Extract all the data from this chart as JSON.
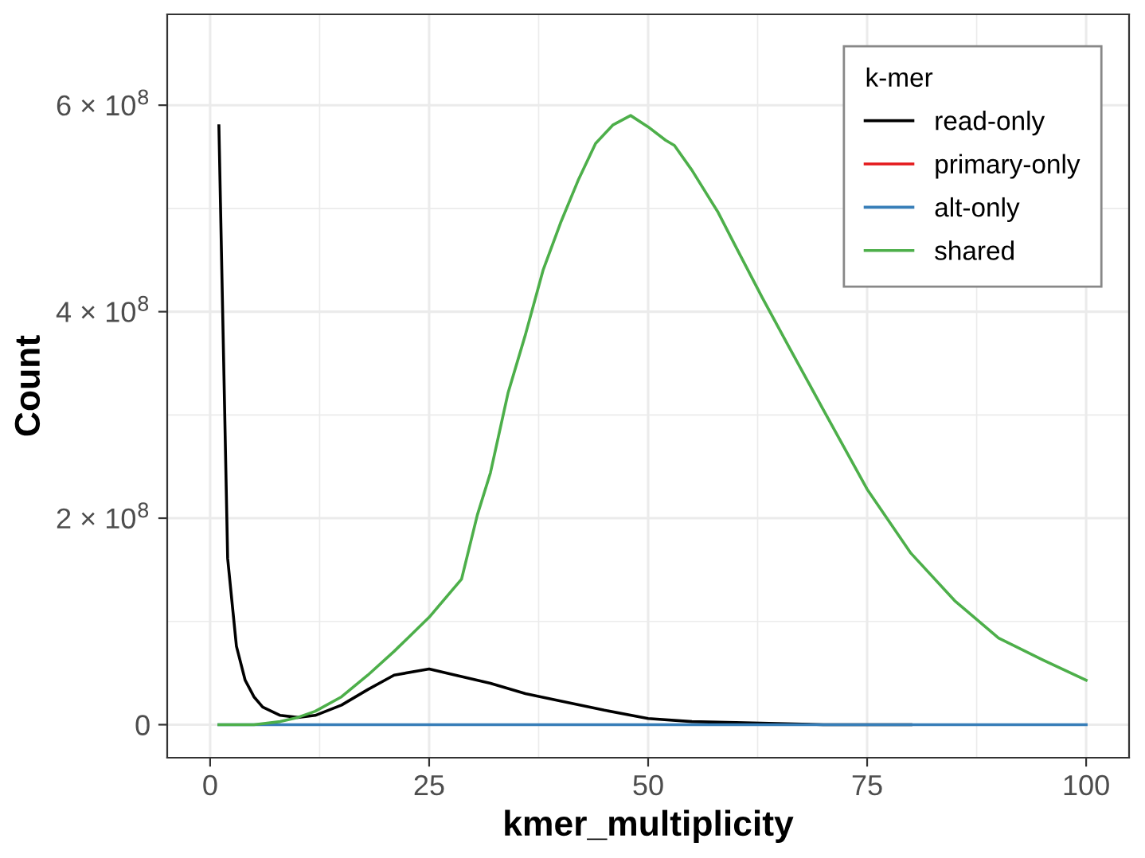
{
  "chart_data": {
    "type": "line",
    "xlabel": "kmer_multiplicity",
    "ylabel": "Count",
    "legend_title": "k-mer",
    "legend": "top right",
    "grid": true,
    "xlim": [
      -4.9,
      104.9
    ],
    "xticks": [
      0,
      25,
      50,
      75,
      100
    ],
    "ylim": [
      -32000000,
      688000000
    ],
    "yticks": [
      {
        "value": 0,
        "label": "0"
      },
      {
        "value": 200000000,
        "label": "2 × 10$^{8}$"
      },
      {
        "value": 400000000,
        "label": "4 × 10$^{8}$"
      },
      {
        "value": 600000000,
        "label": "6 × 10$^{8}$"
      }
    ],
    "series": [
      {
        "name": "read-only",
        "color": "#000000",
        "x": [
          1,
          2,
          3,
          4,
          5,
          6,
          8,
          10,
          12,
          15,
          18,
          21,
          25,
          28,
          32,
          36,
          40,
          45,
          50,
          55,
          60,
          70,
          80
        ],
        "values": [
          580000000,
          161000000,
          76000000,
          43000000,
          27000000,
          17000000,
          9000000,
          7000000,
          9000000,
          19000000,
          34000000,
          48000000,
          54000000,
          48000000,
          40000000,
          30000000,
          23000000,
          14000000,
          6000000,
          3000000,
          2000000,
          0,
          0
        ]
      },
      {
        "name": "primary-only",
        "color": "#e41a1c"
      },
      {
        "name": "alt-only",
        "color": "#377eb8",
        "x": [
          1,
          100
        ],
        "values": [
          0,
          0
        ]
      },
      {
        "name": "shared",
        "color": "#4daf4a",
        "x": [
          1,
          5,
          8,
          10,
          12,
          15,
          18,
          21,
          25,
          28.7,
          30.5,
          32,
          34,
          36,
          38,
          40,
          42,
          44,
          46,
          48,
          50,
          52,
          53,
          55,
          58,
          60,
          63,
          66,
          70,
          75,
          80,
          85,
          90,
          95,
          100
        ],
        "values": [
          0,
          0,
          3000000,
          7000000,
          13000000,
          27000000,
          48000000,
          71000000,
          104000000,
          141000000,
          203000000,
          244000000,
          321000000,
          378000000,
          440000000,
          486000000,
          527000000,
          563000000,
          581000000,
          590000000,
          579000000,
          566000000,
          561000000,
          537000000,
          496000000,
          463000000,
          414000000,
          367000000,
          305000000,
          228000000,
          166000000,
          120000000,
          84000000,
          63000000,
          43000000
        ]
      }
    ]
  }
}
